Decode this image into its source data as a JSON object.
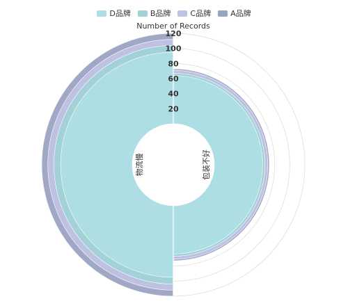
{
  "chart_data": {
    "type": "radial-bar",
    "axis_title": "Number of Records",
    "radial_ticks": [
      20,
      40,
      60,
      80,
      100,
      120
    ],
    "rlim": [
      0,
      120
    ],
    "categories": [
      "物流慢",
      "包装不好"
    ],
    "series": [
      {
        "name": "A品牌",
        "color": "#9ba3c3",
        "values": [
          120,
          73
        ]
      },
      {
        "name": "C品牌",
        "color": "#c0c2e3",
        "values": [
          112,
          71
        ]
      },
      {
        "name": "B品牌",
        "color": "#a0d3d6",
        "values": [
          104,
          67
        ]
      },
      {
        "name": "D品牌",
        "color": "#aedee5",
        "values": [
          95,
          64
        ]
      }
    ],
    "legend_order": [
      "D品牌",
      "B品牌",
      "C品牌",
      "A品牌"
    ],
    "legend_position": "top",
    "grid": true
  }
}
